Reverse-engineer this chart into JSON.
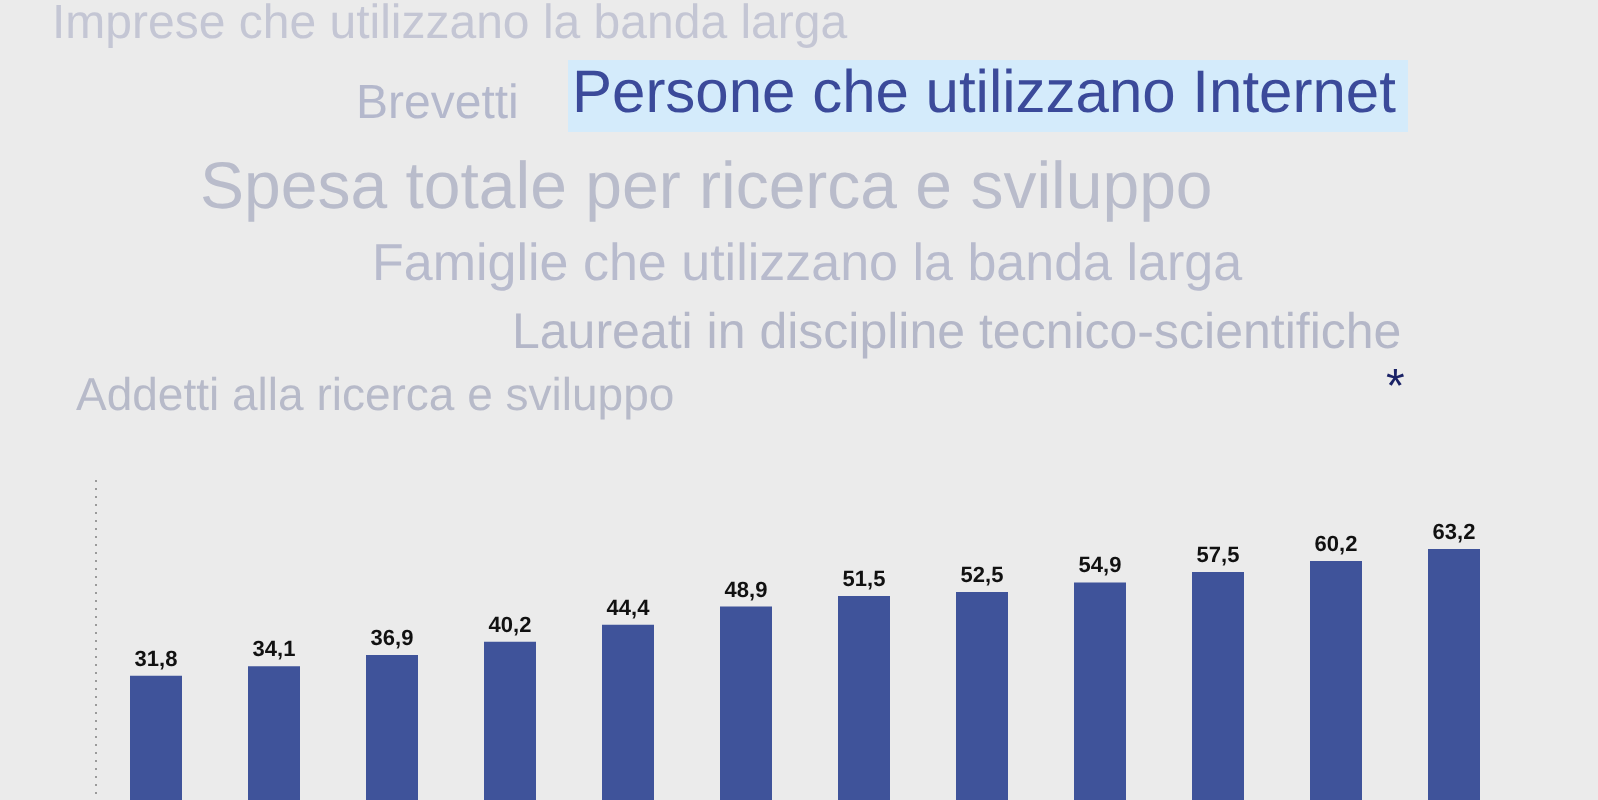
{
  "chart_data": {
    "type": "bar",
    "title": "Persone che utilizzano Internet",
    "annotations": [
      "Imprese che utilizzano la banda larga",
      "Brevetti",
      "Spesa totale per ricerca e sviluppo",
      "Famiglie che utilizzano la banda larga",
      "Laureati in discipline tecnico-scientifiche",
      "Addetti alla ricerca e sviluppo",
      "*"
    ],
    "categories": [
      null,
      null,
      null,
      null,
      null,
      null,
      null,
      null,
      null,
      null,
      null,
      null
    ],
    "values": [
      31.8,
      34.1,
      36.9,
      40.2,
      44.4,
      48.9,
      51.5,
      52.5,
      54.9,
      57.5,
      60.2,
      63.2
    ],
    "value_labels": [
      "31,8",
      "34,1",
      "36,9",
      "40,2",
      "44,4",
      "48,9",
      "51,5",
      "52,5",
      "54,9",
      "57,5",
      "60,2",
      "63,2"
    ],
    "color": "#3f539a",
    "tick_labels": false
  }
}
